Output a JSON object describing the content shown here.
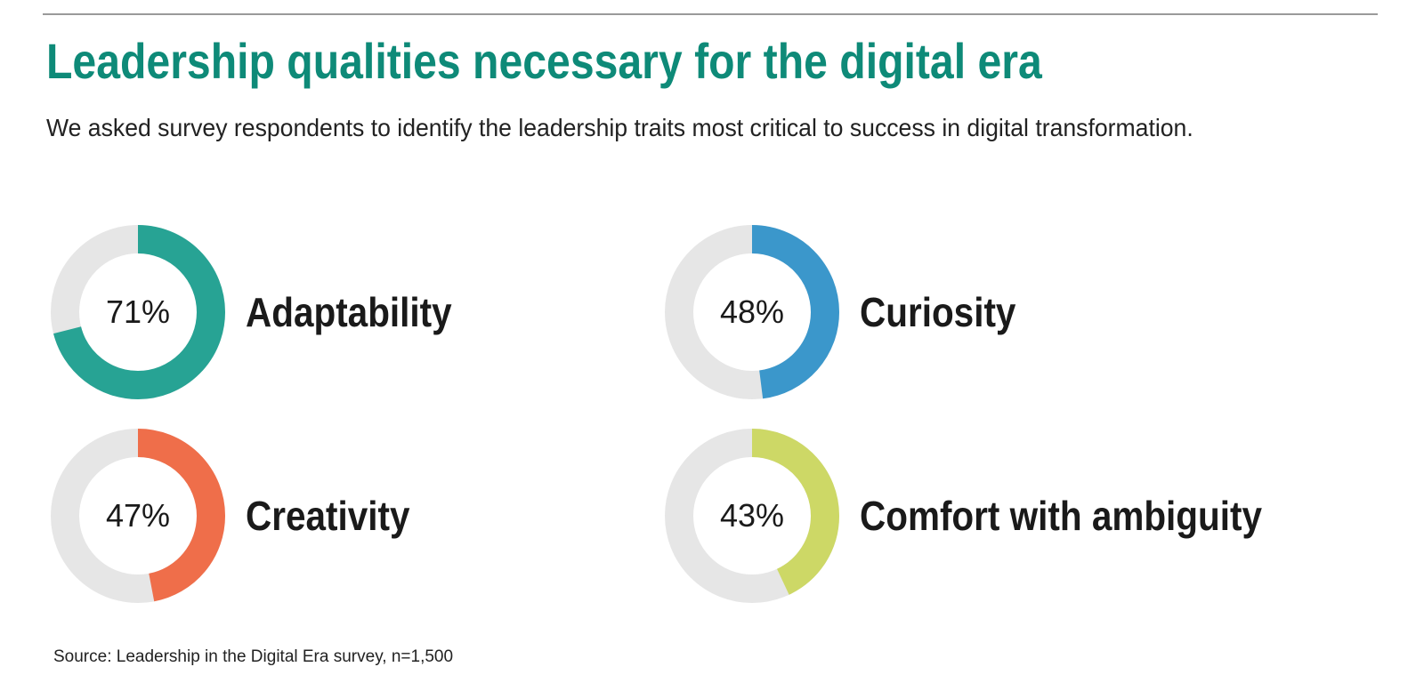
{
  "title": "Leadership qualities necessary for the digital era",
  "subtitle": "We asked survey respondents to identify the leadership traits most critical to success in digital transformation.",
  "source": "Source: Leadership in the Digital Era survey, n=1,500",
  "track_color": "#e6e6e6",
  "chart_data": {
    "type": "pie",
    "title": "Leadership qualities necessary for the digital era",
    "unit": "%",
    "items": [
      {
        "label": "Adaptability",
        "value": 71,
        "display": "71%",
        "color": "#27a394"
      },
      {
        "label": "Curiosity",
        "value": 48,
        "display": "48%",
        "color": "#3b97cb"
      },
      {
        "label": "Creativity",
        "value": 47,
        "display": "47%",
        "color": "#ef6e4a"
      },
      {
        "label": "Comfort with ambiguity",
        "value": 43,
        "display": "43%",
        "color": "#cdd866"
      }
    ]
  }
}
